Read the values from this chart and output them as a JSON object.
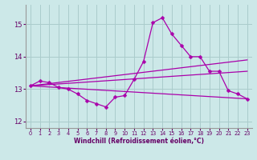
{
  "title": "",
  "xlabel": "Windchill (Refroidissement éolien,°C)",
  "background_color": "#cce8e8",
  "grid_color": "#aacccc",
  "line_color": "#aa00aa",
  "xlim": [
    -0.5,
    23.5
  ],
  "ylim": [
    11.8,
    15.6
  ],
  "yticks": [
    12,
    13,
    14,
    15
  ],
  "xticks": [
    0,
    1,
    2,
    3,
    4,
    5,
    6,
    7,
    8,
    9,
    10,
    11,
    12,
    13,
    14,
    15,
    16,
    17,
    18,
    19,
    20,
    21,
    22,
    23
  ],
  "series_main": {
    "x": [
      0,
      1,
      2,
      3,
      4,
      5,
      6,
      7,
      8,
      9,
      10,
      11,
      12,
      13,
      14,
      15,
      16,
      17,
      18,
      19,
      20,
      21,
      22,
      23
    ],
    "y": [
      13.1,
      13.25,
      13.2,
      13.05,
      13.0,
      12.85,
      12.65,
      12.55,
      12.45,
      12.75,
      12.8,
      13.3,
      13.85,
      15.05,
      15.2,
      14.7,
      14.35,
      14.0,
      14.0,
      13.55,
      13.55,
      12.95,
      12.85,
      12.7
    ]
  },
  "trend_lines": [
    {
      "x0": 0,
      "y0": 13.1,
      "x1": 23,
      "y1": 13.55
    },
    {
      "x0": 0,
      "y0": 13.1,
      "x1": 23,
      "y1": 12.7
    },
    {
      "x0": 0,
      "y0": 13.1,
      "x1": 23,
      "y1": 13.9
    }
  ],
  "marker_color": "#aa00aa",
  "xlabel_color": "#660066",
  "tick_color": "#660066",
  "xlabel_fontsize": 5.5,
  "xlabel_fontweight": "bold",
  "xtick_fontsize": 4.8,
  "ytick_fontsize": 6.0,
  "line_width": 0.9,
  "marker_size": 2.5
}
